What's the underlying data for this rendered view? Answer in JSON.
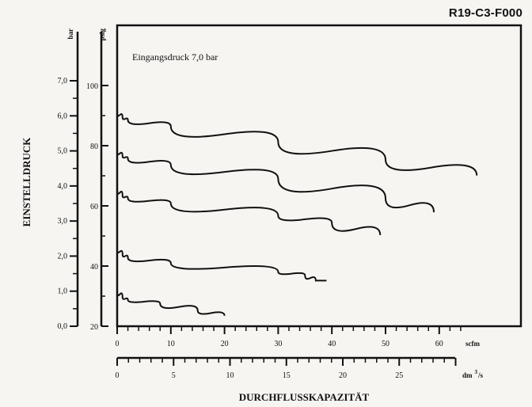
{
  "document_code": "R19-C3-F000",
  "chart_data": {
    "type": "line",
    "title": "",
    "annotation": "Eingangsdruck 7,0 bar",
    "ylabel": "EINSTELLDRUCK",
    "xlabel": "DURCHFLUSSKAPAZITÄT",
    "units": {
      "bar": "bar",
      "psig": "psig",
      "scfm": "scfm",
      "dm3s_main": "dm",
      "dm3s_sup": "3",
      "dm3s_tail": "/s"
    },
    "y_bar_ticks": [
      "0,0",
      "1,0",
      "2,0",
      "3,0",
      "4,0",
      "5,0",
      "6,0",
      "7,0"
    ],
    "y_bar_range": [
      0,
      7
    ],
    "y_psig_ticks": [
      "20",
      "40",
      "60",
      "80",
      "100"
    ],
    "y_psig_range": [
      20,
      100
    ],
    "x_scfm_ticks": [
      "0",
      "10",
      "20",
      "30",
      "40",
      "50",
      "60"
    ],
    "x_scfm_range": [
      0,
      70
    ],
    "x_dm3s_ticks": [
      "0",
      "5",
      "10",
      "15",
      "20",
      "25"
    ],
    "x_dm3s_range": [
      0,
      30
    ],
    "series": [
      {
        "points": [
          [
            0,
            6.1
          ],
          [
            1,
            5.95
          ],
          [
            2,
            5.88
          ],
          [
            10,
            5.7
          ],
          [
            30,
            5.25
          ],
          [
            50,
            4.75
          ],
          [
            67,
            4.3
          ]
        ]
      },
      {
        "points": [
          [
            0,
            5.0
          ],
          [
            1,
            4.85
          ],
          [
            2,
            4.78
          ],
          [
            10,
            4.6
          ],
          [
            30,
            4.2
          ],
          [
            50,
            3.65
          ],
          [
            59,
            3.25
          ]
        ]
      },
      {
        "points": [
          [
            0,
            3.9
          ],
          [
            1,
            3.72
          ],
          [
            2,
            3.65
          ],
          [
            10,
            3.5
          ],
          [
            30,
            3.15
          ],
          [
            40,
            2.95
          ],
          [
            49,
            2.6
          ]
        ]
      },
      {
        "points": [
          [
            0,
            2.2
          ],
          [
            1,
            2.05
          ],
          [
            2,
            1.95
          ],
          [
            10,
            1.8
          ],
          [
            30,
            1.55
          ],
          [
            35,
            1.45
          ],
          [
            37,
            1.3
          ],
          [
            39,
            1.3
          ]
        ]
      },
      {
        "points": [
          [
            0,
            1.0
          ],
          [
            1,
            0.82
          ],
          [
            2,
            0.75
          ],
          [
            8,
            0.65
          ],
          [
            15,
            0.45
          ],
          [
            20,
            0.3
          ]
        ]
      }
    ]
  }
}
